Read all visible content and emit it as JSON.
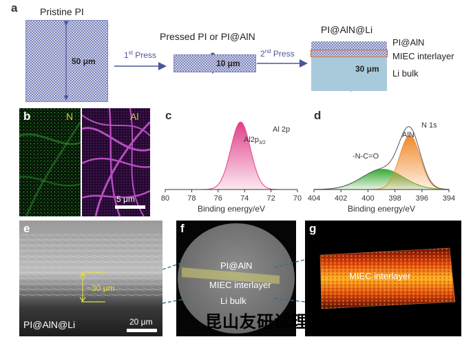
{
  "panel_labels": {
    "a": "a",
    "b": "b",
    "c": "c",
    "d": "d",
    "e": "e",
    "f": "f",
    "g": "g"
  },
  "panel_a": {
    "pristine_title": "Pristine PI",
    "pristine_thickness": "50 μm",
    "press1_sup": "st",
    "press1_num": "1",
    "press1_word": " Press",
    "pressed_title": "Pressed PI or PI@AlN",
    "pressed_thickness": "10 μm",
    "press2_sup": "nd",
    "press2_num": "2",
    "press2_word": " Press",
    "result_title": "PI@AlN@Li",
    "layer_top": "PI@AlN",
    "layer_mid": "MIEC interlayer",
    "layer_bottom": "Li bulk",
    "li_thickness": "30 μm",
    "colors": {
      "mesh_dark": "#7f86bd",
      "mesh_light": "#cfd3e6",
      "li": "#a9cadb",
      "arrow": "#4b5598",
      "interlayer": "#d9622b"
    }
  },
  "panel_b": {
    "n_label": "N",
    "al_label": "Al",
    "scale": "5 μm",
    "colors": {
      "n": "#3cc43c",
      "al": "#d05ad8"
    }
  },
  "panel_e": {
    "caption": "PI@AlN@Li",
    "thickness": "~30 μm",
    "scale": "20 μm"
  },
  "panel_f": {
    "top": "PI@AlN",
    "mid": "MIEC interlayer",
    "bottom": "Li bulk"
  },
  "panel_g": {
    "label": "MIEC interlayer"
  },
  "watermark": "昆山友研试理",
  "chart_data": [
    {
      "id": "c",
      "type": "area",
      "xlabel": "Binding energy/eV",
      "xlim": [
        80,
        70
      ],
      "xticks": [
        80,
        78,
        76,
        74,
        72,
        70
      ],
      "title": "Al 2p",
      "annotations": [
        "Al2p3/2"
      ],
      "series": [
        {
          "name": "Al2p3/2",
          "center": 74.3,
          "fwhm": 1.75,
          "amplitude": 1.0,
          "color": "#e0408a"
        }
      ]
    },
    {
      "id": "d",
      "type": "area",
      "xlabel": "Binding energy/eV",
      "xlim": [
        404,
        394
      ],
      "xticks": [
        404,
        402,
        400,
        398,
        396,
        394
      ],
      "title": "N 1s",
      "annotations": [
        "-N-C=O",
        "AlN"
      ],
      "series": [
        {
          "name": "-N-C=O",
          "center": 398.9,
          "fwhm": 3.6,
          "amplitude": 0.3,
          "color": "#3aaa35"
        },
        {
          "name": "AlN",
          "center": 396.9,
          "fwhm": 1.8,
          "amplitude": 0.8,
          "color": "#f0892a"
        }
      ]
    }
  ]
}
